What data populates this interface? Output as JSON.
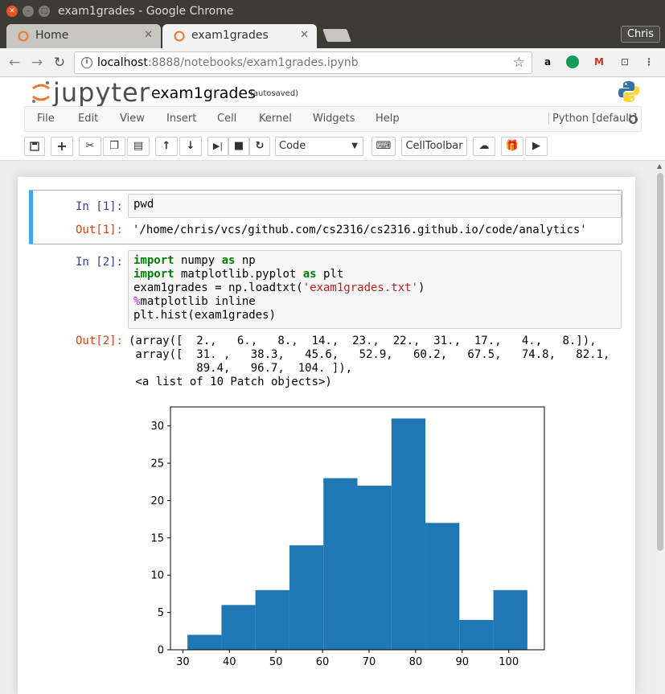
{
  "window": {
    "title": "exam1grades - Google Chrome"
  },
  "tabs": [
    {
      "label": "Home",
      "active": false
    },
    {
      "label": "exam1grades",
      "active": true
    }
  ],
  "profile": "Chris",
  "omnibox": {
    "url_host": "localhost",
    "url_rest": ":8888/notebooks/exam1grades.ipynb"
  },
  "jupyter": {
    "logo_text": "jupyter",
    "notebook_name": "exam1grades",
    "autosave": "(autosaved)",
    "menu": [
      "File",
      "Edit",
      "View",
      "Insert",
      "Cell",
      "Kernel",
      "Widgets",
      "Help"
    ],
    "kernel": "Python [default]",
    "toolbar": {
      "cell_type": "Code",
      "celltoolbar_label": "CellToolbar"
    }
  },
  "cells": [
    {
      "in_prompt": "In [1]:",
      "code": "pwd",
      "out_prompt": "Out[1]:",
      "output": "'/home/chris/vcs/github.com/cs2316/cs2316.github.io/code/analytics'"
    },
    {
      "in_prompt": "In [2]:",
      "code_lines": [
        [
          "import",
          " numpy ",
          "as",
          " np"
        ],
        [
          "import",
          " matplotlib.pyplot ",
          "as",
          " plt"
        ],
        [
          "exam1grades = np.loadtxt(",
          "'exam1grades.txt'",
          ")"
        ],
        [
          "%",
          "matplotlib inline"
        ],
        [
          "plt.hist(exam1grades)"
        ]
      ],
      "out_prompt": "Out[2]:",
      "output": "(array([  2.,   6.,   8.,  14.,  23.,  22.,  31.,  17.,   4.,   8.]),\n array([  31. ,   38.3,   45.6,   52.9,   60.2,   67.5,   74.8,   82.1,\n          89.4,   96.7,  104. ]),\n <a list of 10 Patch objects>)"
    }
  ],
  "chart_data": {
    "type": "bar",
    "bin_edges": [
      31.0,
      38.3,
      45.6,
      52.9,
      60.2,
      67.5,
      74.8,
      82.1,
      89.4,
      96.7,
      104.0
    ],
    "values": [
      2,
      6,
      8,
      14,
      23,
      22,
      31,
      17,
      4,
      8
    ],
    "xticks": [
      30,
      40,
      50,
      60,
      70,
      80,
      90,
      100
    ],
    "yticks": [
      0,
      5,
      10,
      15,
      20,
      25,
      30
    ],
    "xlim": [
      27.35,
      107.65
    ],
    "ylim": [
      0,
      32.55
    ],
    "color": "#1f77b4"
  }
}
